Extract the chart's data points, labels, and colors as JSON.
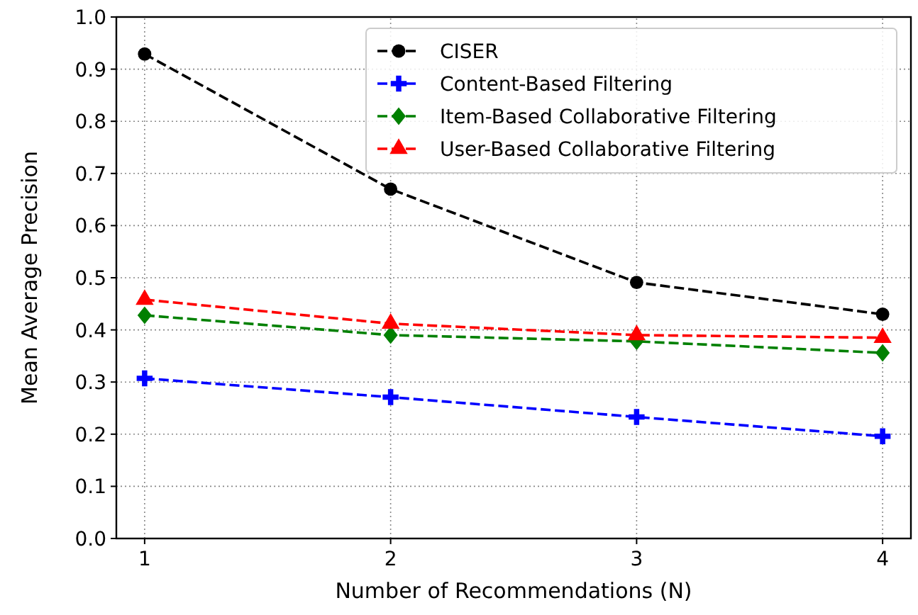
{
  "chart_data": {
    "type": "line",
    "xlabel": "Number of Recommendations (N)",
    "ylabel": "Mean Average Precision",
    "x": [
      1,
      2,
      3,
      4
    ],
    "xlim": [
      0.885,
      4.115
    ],
    "xticks": [
      1,
      2,
      3,
      4
    ],
    "ylim": [
      0,
      1
    ],
    "yticks": [
      {
        "value": 0,
        "label": "0.0"
      },
      {
        "value": 0.1,
        "label": "0.1"
      },
      {
        "value": 0.2,
        "label": "0.2"
      },
      {
        "value": 0.3,
        "label": "0.3"
      },
      {
        "value": 0.4,
        "label": "0.4"
      },
      {
        "value": 0.5,
        "label": "0.5"
      },
      {
        "value": 0.6,
        "label": "0.6"
      },
      {
        "value": 0.7,
        "label": "0.7"
      },
      {
        "value": 0.8,
        "label": "0.8"
      },
      {
        "value": 0.9,
        "label": "0.9"
      },
      {
        "value": 1,
        "label": "1.0"
      }
    ],
    "grid": true,
    "legend": "top right",
    "line_style": "dashed",
    "series": [
      {
        "name": "CISER",
        "color": "#000000",
        "marker": "circle",
        "values": [
          0.929,
          0.67,
          0.491,
          0.43
        ]
      },
      {
        "name": "Content-Based Filtering",
        "color": "#0000ff",
        "marker": "cross",
        "values": [
          0.307,
          0.271,
          0.233,
          0.196
        ]
      },
      {
        "name": "Item-Based Collaborative Filtering",
        "color": "#008000",
        "marker": "diamond",
        "values": [
          0.428,
          0.39,
          0.378,
          0.356
        ]
      },
      {
        "name": "User-Based Collaborative Filtering",
        "color": "#ff0000",
        "marker": "triangle",
        "values": [
          0.458,
          0.412,
          0.39,
          0.385
        ]
      }
    ]
  }
}
